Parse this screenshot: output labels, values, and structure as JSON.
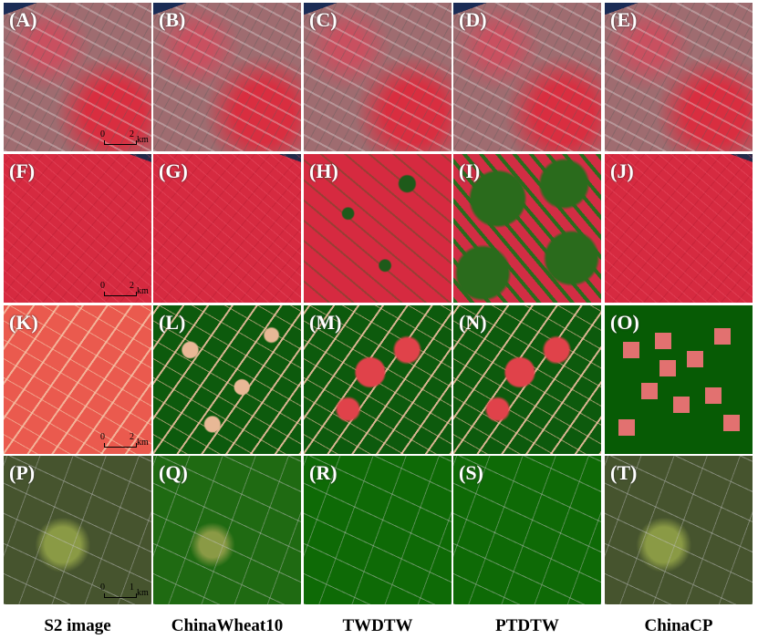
{
  "rows": [
    {
      "panels": [
        "(A)",
        "(B)",
        "(C)",
        "(D)",
        "(E)"
      ],
      "scale_bar": {
        "start": "0",
        "end": "2",
        "unit": "km"
      }
    },
    {
      "panels": [
        "(F)",
        "(G)",
        "(H)",
        "(I)",
        "(J)"
      ],
      "scale_bar": {
        "start": "0",
        "end": "2",
        "unit": "km"
      }
    },
    {
      "panels": [
        "(K)",
        "(L)",
        "(M)",
        "(N)",
        "(O)"
      ],
      "scale_bar": {
        "start": "0",
        "end": "2",
        "unit": "km"
      }
    },
    {
      "panels": [
        "(P)",
        "(Q)",
        "(R)",
        "(S)",
        "(T)"
      ],
      "scale_bar": {
        "start": "0",
        "end": "1",
        "unit": "km"
      }
    }
  ],
  "columns": [
    "S2 image",
    "ChinaWheat10",
    "TWDTW",
    "PTDTW",
    "ChinaCP"
  ]
}
